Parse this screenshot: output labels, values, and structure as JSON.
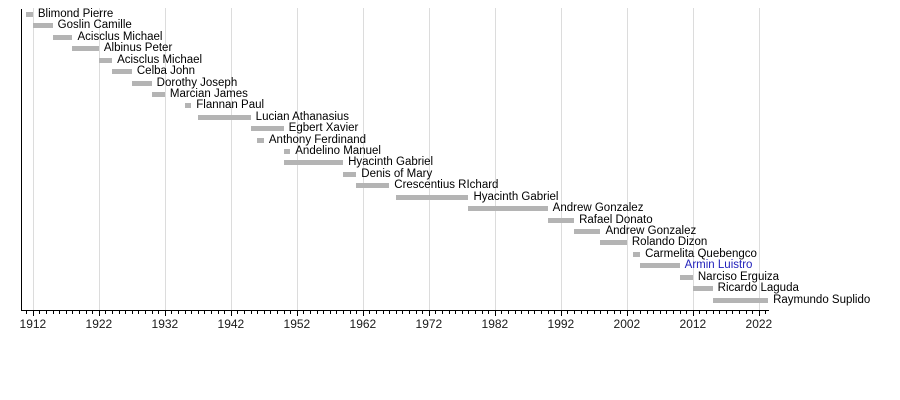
{
  "chart_data": {
    "type": "bar",
    "variant": "horizontal-timeline-gantt",
    "title": "",
    "xlabel": "",
    "ylabel": "",
    "legend": "none",
    "grid": "vertical",
    "colors": {
      "bar": "#b4b4b4",
      "grid": "#dcdcdc",
      "axis": "#000000",
      "label": "#000000",
      "highlight_label": "#2222bb"
    },
    "axis": {
      "min": 1910.2,
      "max": 2023.4,
      "major_ticks": [
        1912,
        1922,
        1932,
        1942,
        1952,
        1962,
        1972,
        1982,
        1992,
        2002,
        2012,
        2022
      ],
      "minor_tick_interval": 1
    },
    "rows": [
      {
        "label": "Blimond Pierre",
        "start": 1911,
        "end": 1912,
        "highlight": false
      },
      {
        "label": "Goslin Camille",
        "start": 1912,
        "end": 1915,
        "highlight": false
      },
      {
        "label": "Acisclus Michael",
        "start": 1915,
        "end": 1918,
        "highlight": false
      },
      {
        "label": "Albinus Peter",
        "start": 1918,
        "end": 1922,
        "highlight": false
      },
      {
        "label": "Acisclus Michael",
        "start": 1922,
        "end": 1924,
        "highlight": false
      },
      {
        "label": "Celba John",
        "start": 1924,
        "end": 1927,
        "highlight": false
      },
      {
        "label": "Dorothy Joseph",
        "start": 1927,
        "end": 1930,
        "highlight": false
      },
      {
        "label": "Marcian James",
        "start": 1930,
        "end": 1932,
        "highlight": false
      },
      {
        "label": "Flannan Paul",
        "start": 1935,
        "end": 1936,
        "highlight": false
      },
      {
        "label": "Lucian Athanasius",
        "start": 1937,
        "end": 1945,
        "highlight": false
      },
      {
        "label": "Egbert Xavier",
        "start": 1945,
        "end": 1950,
        "highlight": false
      },
      {
        "label": "Anthony Ferdinand",
        "start": 1946,
        "end": 1947,
        "highlight": false
      },
      {
        "label": "Andelino Manuel",
        "start": 1950,
        "end": 1951,
        "highlight": false
      },
      {
        "label": "Hyacinth Gabriel",
        "start": 1950,
        "end": 1959,
        "highlight": false
      },
      {
        "label": "Denis of Mary",
        "start": 1959,
        "end": 1961,
        "highlight": false
      },
      {
        "label": "Crescentius RIchard",
        "start": 1961,
        "end": 1966,
        "highlight": false
      },
      {
        "label": "Hyacinth Gabriel",
        "start": 1967,
        "end": 1978,
        "highlight": false
      },
      {
        "label": "Andrew Gonzalez",
        "start": 1978,
        "end": 1990,
        "highlight": false
      },
      {
        "label": "Rafael Donato",
        "start": 1990,
        "end": 1994,
        "highlight": false
      },
      {
        "label": "Andrew Gonzalez",
        "start": 1994,
        "end": 1998,
        "highlight": false
      },
      {
        "label": "Rolando Dizon",
        "start": 1998,
        "end": 2002,
        "highlight": false
      },
      {
        "label": "Carmelita Quebengco",
        "start": 2003,
        "end": 2004,
        "highlight": false
      },
      {
        "label": "Armin Luistro",
        "start": 2004,
        "end": 2010,
        "highlight": true
      },
      {
        "label": "Narciso Erguiza",
        "start": 2010,
        "end": 2012,
        "highlight": false
      },
      {
        "label": "Ricardo Laguda",
        "start": 2012,
        "end": 2015,
        "highlight": false
      },
      {
        "label": "Raymundo Suplido",
        "start": 2015,
        "end": 2023.4,
        "highlight": false
      }
    ]
  }
}
